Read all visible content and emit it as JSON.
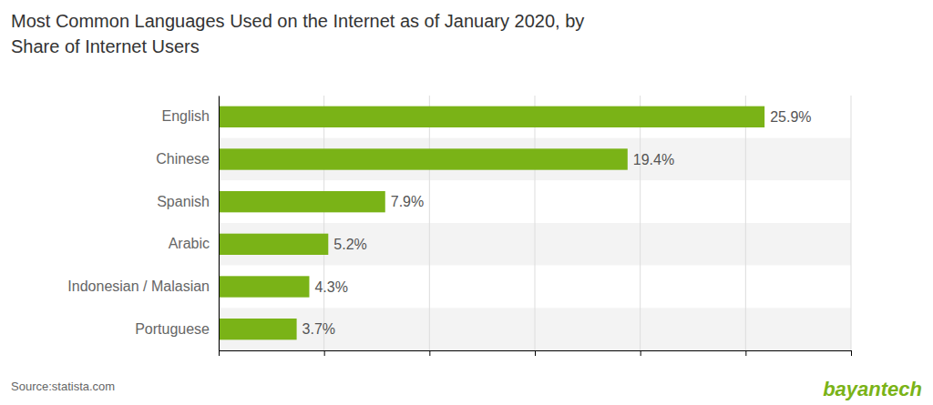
{
  "chart_data": {
    "type": "bar",
    "orientation": "horizontal",
    "title": "Most Common Languages Used on the Internet as of January 2020, by",
    "subtitle": "Share of Internet Users",
    "categories": [
      "English",
      "Chinese",
      "Spanish",
      "Arabic",
      "Indonesian / Malasian",
      "Portuguese"
    ],
    "values": [
      25.9,
      19.4,
      7.9,
      5.2,
      4.3,
      3.7
    ],
    "value_labels": [
      "25.9%",
      "19.4%",
      "7.9%",
      "5.2%",
      "4.3%",
      "3.7%"
    ],
    "data_labels": true,
    "color": "#7ab317",
    "xlim": [
      0,
      30
    ],
    "xticks": [
      0,
      5,
      10,
      15,
      20,
      25,
      30
    ],
    "grid": true,
    "tick_labels": "y",
    "annotations": [
      {
        "text": "Source:statista.com"
      },
      {
        "text": "bayantech",
        "color": "#7ab317"
      }
    ]
  }
}
